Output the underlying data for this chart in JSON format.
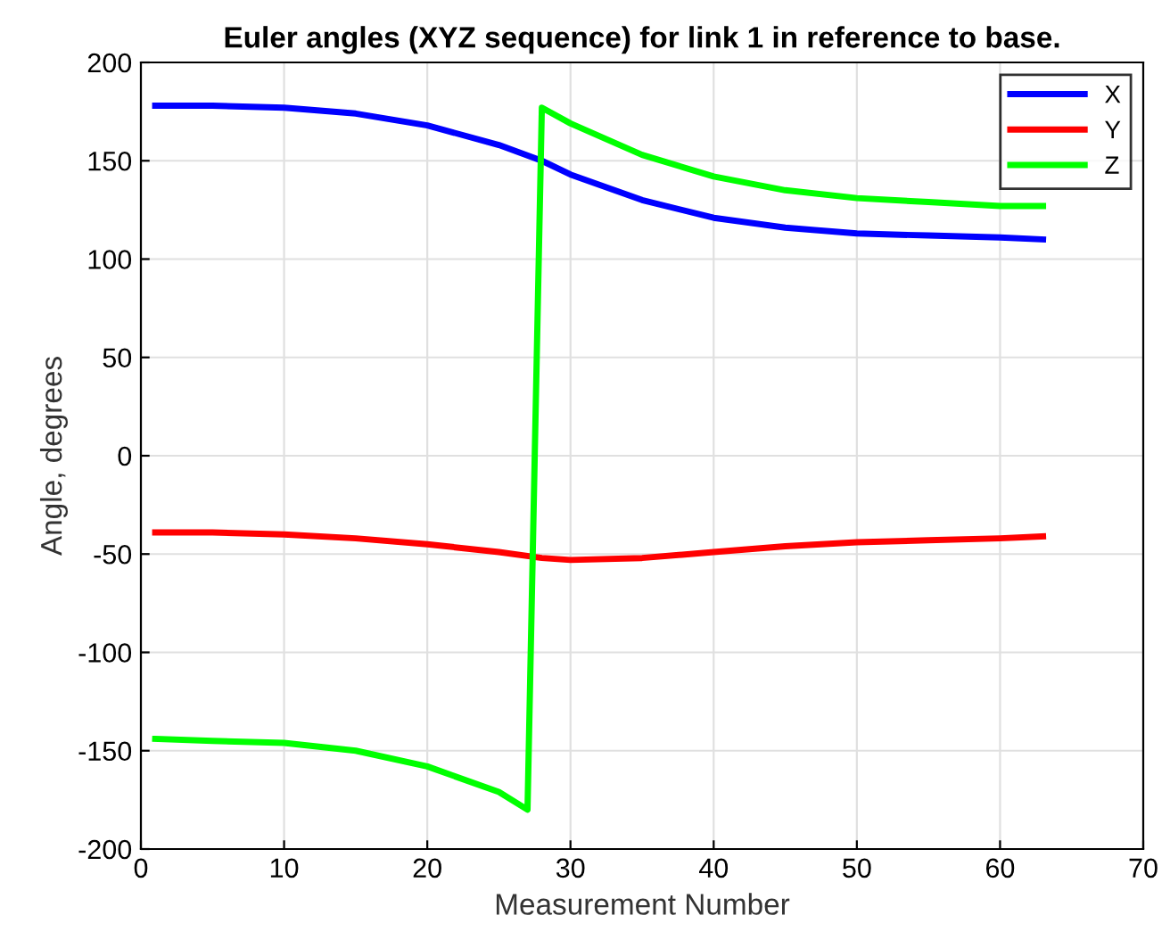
{
  "chart_data": {
    "type": "line",
    "title": "Euler angles (XYZ sequence) for link 1 in reference to base.",
    "xlabel": "Measurement Number",
    "ylabel": "Angle, degrees",
    "xlim": [
      0,
      70
    ],
    "ylim": [
      -200,
      200
    ],
    "xticks": [
      0,
      10,
      20,
      30,
      40,
      50,
      60,
      70
    ],
    "yticks": [
      -200,
      -150,
      -100,
      -50,
      0,
      50,
      100,
      150,
      200
    ],
    "grid": true,
    "legend": "top right",
    "series": [
      {
        "name": "X",
        "color": "#0000ff",
        "x": [
          1,
          5,
          10,
          15,
          20,
          25,
          28,
          30,
          35,
          40,
          45,
          50,
          55,
          60,
          63
        ],
        "values": [
          178,
          178,
          177,
          174,
          168,
          158,
          150,
          143,
          130,
          121,
          116,
          113,
          112,
          111,
          110
        ]
      },
      {
        "name": "Y",
        "color": "#ff0000",
        "x": [
          1,
          5,
          10,
          15,
          20,
          25,
          28,
          30,
          35,
          40,
          45,
          50,
          55,
          60,
          63
        ],
        "values": [
          -39,
          -39,
          -40,
          -42,
          -45,
          -49,
          -52,
          -53,
          -52,
          -49,
          -46,
          -44,
          -43,
          -42,
          -41
        ]
      },
      {
        "name": "Z",
        "color": "#00ff00",
        "x": [
          1,
          5,
          10,
          15,
          20,
          25,
          27,
          28,
          30,
          35,
          40,
          45,
          50,
          55,
          60,
          63
        ],
        "values": [
          -144,
          -145,
          -146,
          -150,
          -158,
          -171,
          -180,
          177,
          169,
          153,
          142,
          135,
          131,
          129,
          127,
          127
        ]
      }
    ]
  }
}
